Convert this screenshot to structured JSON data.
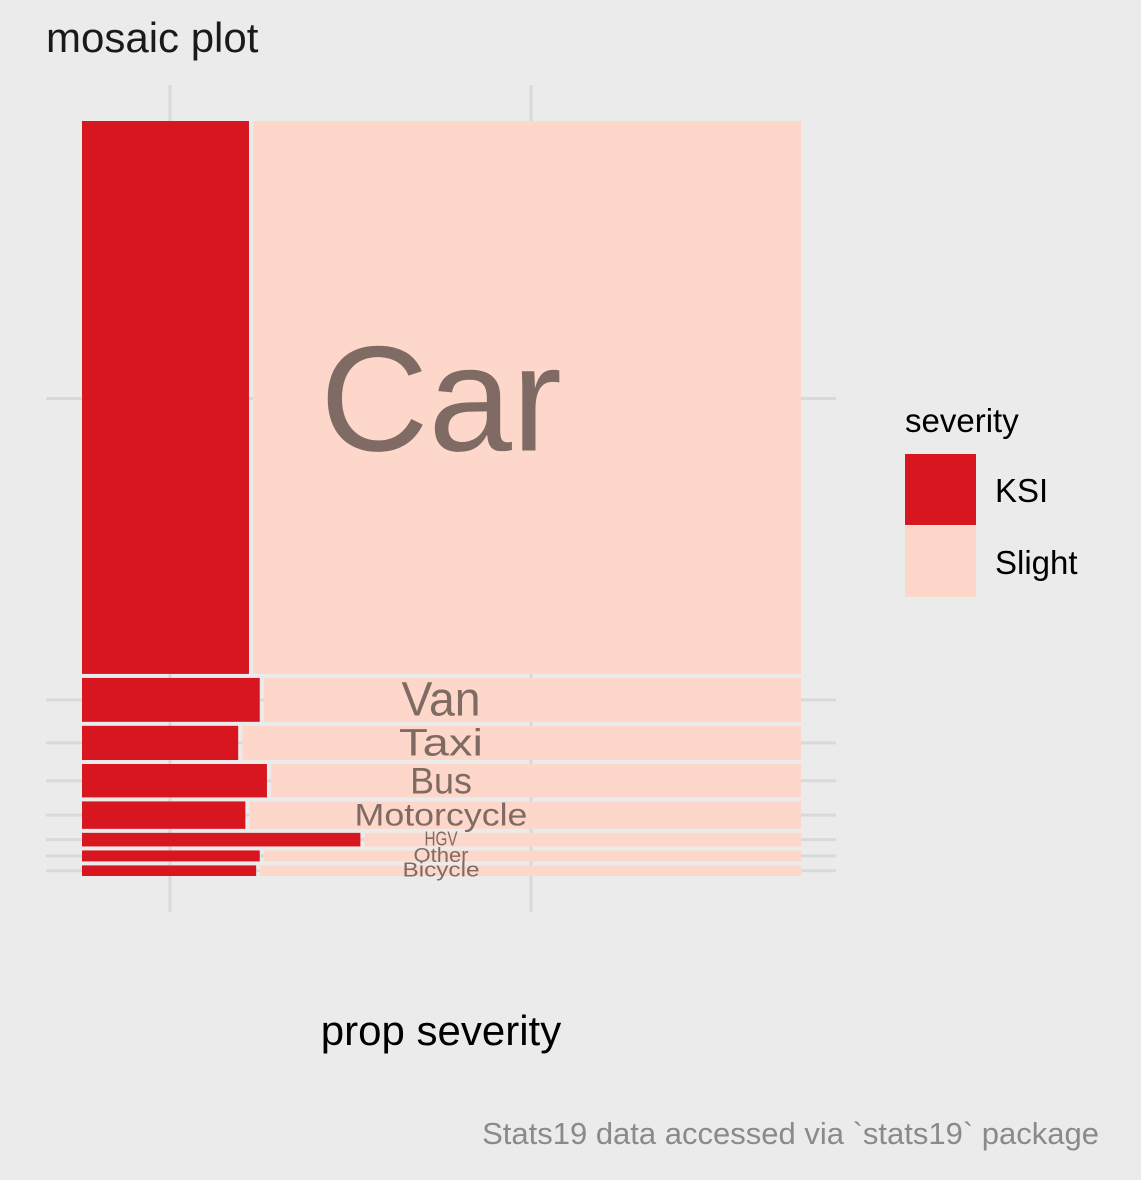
{
  "chart_data": {
    "type": "mosaic",
    "title": "mosaic plot",
    "xlabel": "prop severity",
    "ylabel": "",
    "caption": "Stats19 data accessed via `stats19` package",
    "legend": {
      "title": "severity",
      "position": "right",
      "entries": [
        {
          "name": "KSI",
          "color": "#d7161f"
        },
        {
          "name": "Slight",
          "color": "#fdd8ca"
        }
      ]
    },
    "label_color": "#806b64",
    "grid": true,
    "categories": [
      "Car",
      "Van",
      "Taxi",
      "Bus",
      "Motorcycle",
      "HGV",
      "Other",
      "Bicycle"
    ],
    "weights": [
      0.7415,
      0.064,
      0.051,
      0.05,
      0.042,
      0.0235,
      0.02,
      0.0195
    ],
    "series": [
      {
        "name": "KSI",
        "values": [
          0.235,
          0.25,
          0.22,
          0.26,
          0.23,
          0.39,
          0.25,
          0.245
        ]
      },
      {
        "name": "Slight",
        "values": [
          0.765,
          0.75,
          0.78,
          0.74,
          0.77,
          0.61,
          0.75,
          0.755
        ]
      }
    ]
  }
}
